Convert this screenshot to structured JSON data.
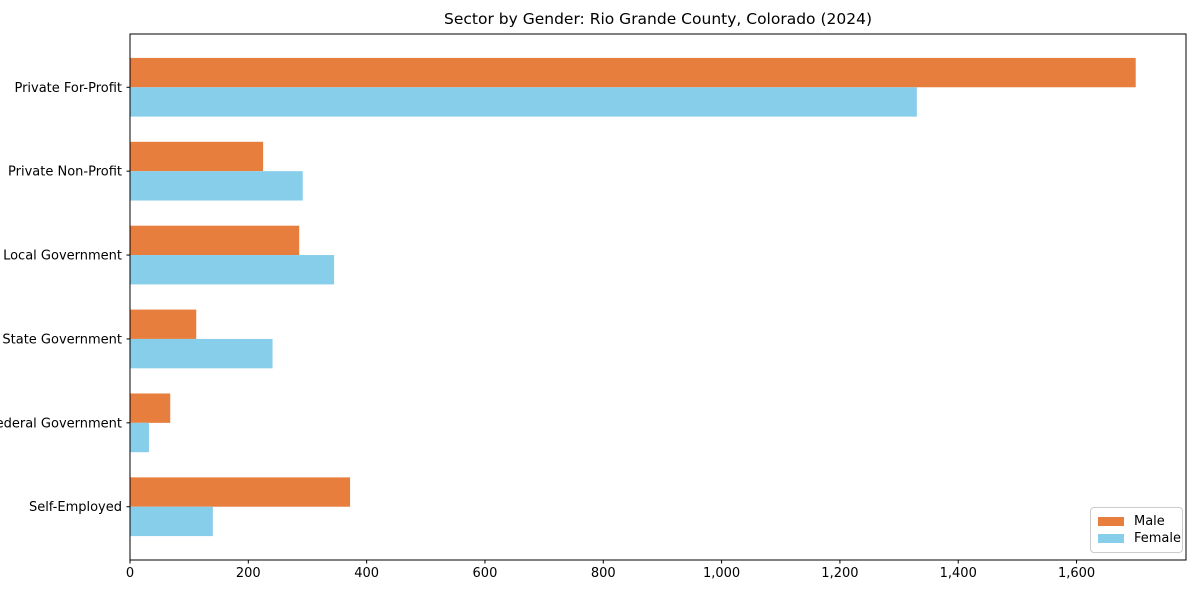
{
  "chart_data": {
    "type": "bar",
    "orientation": "horizontal",
    "title": "Sector by Gender: Rio Grande County, Colorado (2024)",
    "categories": [
      "Private For-Profit",
      "Private Non-Profit",
      "Local Government",
      "State Government",
      "Federal Government",
      "Self-Employed"
    ],
    "series": [
      {
        "name": "Male",
        "color": "#e87e3e",
        "values": [
          1700,
          225,
          286,
          112,
          68,
          372
        ]
      },
      {
        "name": "Female",
        "color": "#87ceeb",
        "values": [
          1330,
          292,
          345,
          241,
          32,
          140
        ]
      }
    ],
    "xlabel": "",
    "ylabel": "",
    "xlim": [
      0,
      1785
    ],
    "xticks": [
      0,
      200,
      400,
      600,
      800,
      1000,
      1200,
      1400,
      1600
    ],
    "xtick_labels": [
      "0",
      "200",
      "400",
      "600",
      "800",
      "1,000",
      "1,200",
      "1,400",
      "1,600"
    ],
    "grid": false,
    "legend": {
      "position": "lower right",
      "entries": [
        "Male",
        "Female"
      ]
    }
  },
  "colors": {
    "background": "#ffffff",
    "spine": "#000000",
    "tick_text": "#000000",
    "legend_border": "#cccccc"
  }
}
